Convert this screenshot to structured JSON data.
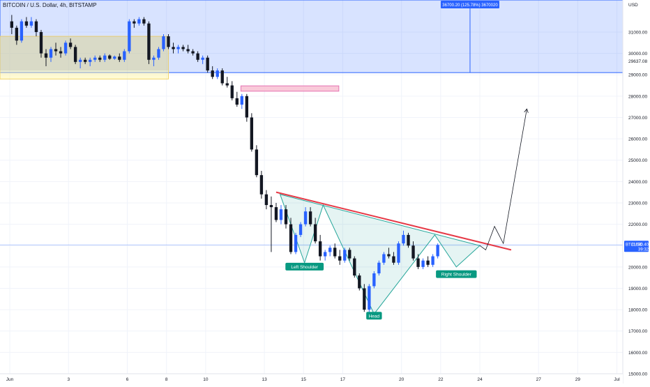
{
  "chart_data": {
    "type": "candlestick",
    "symbol_header": "BITCOIN / U.S. Dollar, 4h, BITSTAMP",
    "price_axis": {
      "currency_label": "USD",
      "range": [
        15000,
        32500
      ],
      "ticks": [
        15000,
        16000,
        17000,
        18000,
        19000,
        20000,
        21000,
        22000,
        23000,
        24000,
        25000,
        26000,
        27000,
        28000,
        29000,
        30000,
        31000
      ],
      "tick_labels": [
        "15000.00",
        "16000.00",
        "17000.00",
        "18000.00",
        "19000.00",
        "20000.00",
        "21000.00",
        "22000.00",
        "23000.00",
        "24000.00",
        "25000.00",
        "26000.00",
        "27000.00",
        "28000.00",
        "29000.00",
        "30000.00",
        "31000.00"
      ],
      "extra_label": "29637.08",
      "extra_value": 29637.08
    },
    "time_axis": {
      "day_range": [
        -0.5,
        31.3
      ],
      "ticks": [
        0,
        3,
        6,
        8,
        10,
        13,
        15,
        17,
        20,
        22,
        24,
        27,
        29,
        31
      ],
      "tick_labels": [
        "Jun",
        "3",
        "6",
        "8",
        "10",
        "13",
        "15",
        "17",
        "20",
        "22",
        "24",
        "27",
        "29",
        "Jul"
      ]
    },
    "last_price": {
      "symbol": "BTCUSD",
      "price": 21030.4,
      "price_label": "21030.40",
      "countdown": "39:32",
      "color": "#2962ff"
    },
    "measure_tool": {
      "label": "36700.20 (125.78%) 3670020",
      "day": 23.5,
      "price_top": 32500,
      "price_bottom": 29100,
      "color": "#2962ff"
    },
    "ohlc": [
      [
        31500,
        31800,
        30900,
        31200
      ],
      [
        31200,
        31300,
        30400,
        30600
      ],
      [
        30600,
        31600,
        30500,
        31500
      ],
      [
        31500,
        31700,
        31200,
        31300
      ],
      [
        31300,
        31700,
        31200,
        31500
      ],
      [
        31500,
        31600,
        30800,
        31000
      ],
      [
        31000,
        31100,
        29800,
        30000
      ],
      [
        30000,
        30200,
        29400,
        29800
      ],
      [
        29800,
        30300,
        29600,
        30200
      ],
      [
        30200,
        30500,
        29900,
        30100
      ],
      [
        30100,
        30300,
        29800,
        30000
      ],
      [
        30000,
        30600,
        29900,
        30500
      ],
      [
        30500,
        30700,
        30200,
        30300
      ],
      [
        30300,
        30400,
        29500,
        29600
      ],
      [
        29600,
        29800,
        29300,
        29700
      ],
      [
        29700,
        29800,
        29500,
        29600
      ],
      [
        29600,
        29800,
        29400,
        29700
      ],
      [
        29700,
        29900,
        29600,
        29800
      ],
      [
        29800,
        29900,
        29600,
        29700
      ],
      [
        29700,
        30000,
        29600,
        29900
      ],
      [
        29900,
        29950,
        29700,
        29750
      ],
      [
        29750,
        29900,
        29700,
        29850
      ],
      [
        29850,
        30000,
        29600,
        29700
      ],
      [
        29700,
        30200,
        29600,
        30100
      ],
      [
        30100,
        31600,
        30000,
        31500
      ],
      [
        31500,
        31600,
        31200,
        31400
      ],
      [
        31400,
        31700,
        31300,
        31600
      ],
      [
        31600,
        31700,
        31300,
        31400
      ],
      [
        31400,
        31500,
        29500,
        29700
      ],
      [
        29700,
        29900,
        29400,
        29800
      ],
      [
        29800,
        30300,
        29700,
        30200
      ],
      [
        30200,
        30900,
        30100,
        30800
      ],
      [
        30800,
        30900,
        30200,
        30300
      ],
      [
        30300,
        30500,
        30000,
        30200
      ],
      [
        30200,
        30400,
        30000,
        30300
      ],
      [
        30300,
        30400,
        30100,
        30200
      ],
      [
        30200,
        30400,
        30000,
        30100
      ],
      [
        30100,
        30200,
        29900,
        30000
      ],
      [
        30000,
        30100,
        29600,
        29700
      ],
      [
        29700,
        29900,
        29500,
        29800
      ],
      [
        29800,
        29900,
        29100,
        29200
      ],
      [
        29200,
        29400,
        28800,
        28900
      ],
      [
        28900,
        29300,
        28800,
        29200
      ],
      [
        29200,
        29300,
        28500,
        28600
      ],
      [
        28600,
        28900,
        28400,
        28500
      ],
      [
        28500,
        28700,
        27800,
        27900
      ],
      [
        27900,
        28200,
        27500,
        27600
      ],
      [
        27600,
        28100,
        27400,
        28000
      ],
      [
        28000,
        28100,
        26800,
        27000
      ],
      [
        27000,
        27200,
        25400,
        25500
      ],
      [
        25500,
        25700,
        24200,
        24300
      ],
      [
        24300,
        24500,
        23200,
        23400
      ],
      [
        23400,
        23600,
        22700,
        22900
      ],
      [
        22900,
        23300,
        20700,
        22800
      ],
      [
        22800,
        23000,
        22100,
        22200
      ],
      [
        22200,
        22900,
        22000,
        22700
      ],
      [
        22700,
        22900,
        21800,
        22000
      ],
      [
        22000,
        22300,
        20600,
        20700
      ],
      [
        20700,
        21600,
        20600,
        21500
      ],
      [
        21500,
        22100,
        21400,
        22000
      ],
      [
        22000,
        22800,
        21900,
        22600
      ],
      [
        22600,
        22800,
        21900,
        22000
      ],
      [
        22000,
        22300,
        21100,
        21200
      ],
      [
        21200,
        21500,
        20300,
        20500
      ],
      [
        20500,
        20800,
        20300,
        20700
      ],
      [
        20700,
        21000,
        20500,
        20900
      ],
      [
        20900,
        21100,
        20400,
        20500
      ],
      [
        20500,
        20800,
        20100,
        20300
      ],
      [
        20300,
        20900,
        20200,
        20800
      ],
      [
        20800,
        20900,
        20300,
        20400
      ],
      [
        20400,
        20500,
        19500,
        19600
      ],
      [
        19600,
        19700,
        18900,
        19000
      ],
      [
        19000,
        19200,
        17900,
        18000
      ],
      [
        18000,
        19200,
        17800,
        19100
      ],
      [
        19100,
        19800,
        19000,
        19700
      ],
      [
        19700,
        20300,
        19600,
        20200
      ],
      [
        20200,
        20700,
        20100,
        20600
      ],
      [
        20600,
        20900,
        20400,
        20500
      ],
      [
        20500,
        20700,
        20100,
        20200
      ],
      [
        20200,
        21200,
        20100,
        21100
      ],
      [
        21100,
        21700,
        21000,
        21500
      ],
      [
        21500,
        21600,
        20900,
        21000
      ],
      [
        21000,
        21200,
        20300,
        20400
      ],
      [
        20400,
        20600,
        19900,
        20000
      ],
      [
        20000,
        20400,
        19900,
        20300
      ],
      [
        20300,
        20500,
        20000,
        20100
      ],
      [
        20100,
        20600,
        20000,
        20500
      ],
      [
        20500,
        21100,
        20400,
        21030
      ]
    ],
    "candle_days": [
      0.1,
      0.35,
      0.6,
      0.85,
      1.1,
      1.35,
      1.6,
      1.85,
      2.1,
      2.35,
      2.6,
      2.85,
      3.1,
      3.35,
      3.6,
      3.85,
      4.1,
      4.35,
      4.6,
      4.85,
      5.1,
      5.35,
      5.6,
      5.85,
      6.1,
      6.35,
      6.6,
      6.85,
      7.1,
      7.35,
      7.6,
      7.85,
      8.1,
      8.35,
      8.6,
      8.85,
      9.1,
      9.35,
      9.6,
      9.85,
      10.1,
      10.35,
      10.6,
      10.85,
      11.1,
      11.35,
      11.6,
      11.85,
      12.1,
      12.35,
      12.6,
      12.85,
      13.1,
      13.35,
      13.6,
      13.85,
      14.1,
      14.35,
      14.6,
      14.85,
      15.1,
      15.35,
      15.6,
      15.85,
      16.1,
      16.35,
      16.6,
      16.85,
      17.1,
      17.35,
      17.6,
      17.85,
      18.1,
      18.35,
      18.6,
      18.85,
      19.1,
      19.35,
      19.6,
      19.85,
      20.1,
      20.35,
      20.6,
      20.85,
      21.1,
      21.35,
      21.6,
      21.85
    ],
    "annotations": {
      "zones": [
        {
          "name": "blue-zone",
          "day_from": -0.5,
          "day_to": 31.3,
          "price_top": 32500,
          "price_bottom": 29100,
          "fill": "#2962ff",
          "opacity": 0.18,
          "stroke": "#2962ff"
        },
        {
          "name": "yellow-zone",
          "day_from": -0.5,
          "day_to": 8.1,
          "price_top": 30800,
          "price_bottom": 28800,
          "fill": "#fff59d",
          "opacity": 0.45,
          "stroke": "#f2d46a"
        },
        {
          "name": "grey-zone",
          "day_from": -0.5,
          "day_to": 8.1,
          "price_top": 30800,
          "price_bottom": 29200,
          "fill": "#9e9e9e",
          "opacity": 0.22,
          "stroke": "none"
        },
        {
          "name": "pink-zone",
          "day_from": 11.8,
          "day_to": 16.8,
          "price_top": 28480,
          "price_bottom": 28230,
          "fill": "#f8bbd0",
          "opacity": 0.8,
          "stroke": "#e573b2"
        }
      ],
      "neckline": {
        "from": [
          13.6,
          23.5
        ],
        "to": [
          25.6,
          20.8
        ],
        "color": "#e63946"
      },
      "pattern_outline": [
        [
          13.8,
          23.4
        ],
        [
          15.05,
          20.2
        ],
        [
          16.0,
          22.9
        ],
        [
          18.6,
          17.8
        ],
        [
          21.7,
          21.5
        ],
        [
          22.8,
          20.0
        ],
        [
          24.0,
          21.0
        ]
      ],
      "pattern_fill": "#26a69a",
      "projection": [
        [
          24.0,
          21.0
        ],
        [
          24.3,
          20.8
        ],
        [
          24.75,
          21.9
        ],
        [
          25.2,
          21.1
        ],
        [
          26.4,
          27.4
        ]
      ],
      "shoulder_labels": [
        {
          "text": "Left Shoulder",
          "day": 15.05,
          "price": 20000,
          "color": "#089981"
        },
        {
          "text": "Head",
          "day": 18.6,
          "price": 17700,
          "color": "#089981"
        },
        {
          "text": "Right Shoulder",
          "day": 22.8,
          "price": 19650,
          "color": "#089981"
        }
      ]
    },
    "colors": {
      "up": "#2962ff",
      "down": "#131722",
      "grid": "#f0f3fa",
      "axis_text": "#131722"
    }
  }
}
